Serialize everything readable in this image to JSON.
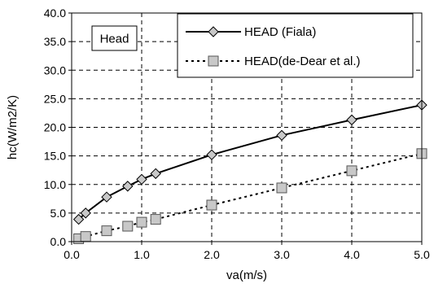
{
  "chart_data": {
    "type": "line",
    "xlabel": "va(m/s)",
    "ylabel": "hc(W/m2/K)",
    "xlim": [
      0,
      5
    ],
    "ylim": [
      0,
      40
    ],
    "x_ticks": [
      "0.0",
      "1.0",
      "2.0",
      "3.0",
      "4.0",
      "5.0"
    ],
    "x_tick_values": [
      0,
      1,
      2,
      3,
      4,
      5
    ],
    "y_ticks": [
      "0.0",
      "5.0",
      "10.0",
      "15.0",
      "20.0",
      "25.0",
      "30.0",
      "35.0",
      "40.0"
    ],
    "y_tick_values": [
      0,
      5,
      10,
      15,
      20,
      25,
      30,
      35,
      40
    ],
    "grid": true,
    "annotation": "Head",
    "legend_position": "top-right",
    "series": [
      {
        "name": "HEAD (Fiala)",
        "line_style": "solid",
        "marker": "diamond",
        "x": [
          0.1,
          0.2,
          0.5,
          0.8,
          1.0,
          1.2,
          2.0,
          3.0,
          4.0,
          5.0
        ],
        "y": [
          3.9,
          5.0,
          7.8,
          9.7,
          10.9,
          11.9,
          15.2,
          18.6,
          21.3,
          23.9
        ]
      },
      {
        "name": "HEAD(de-Dear et al.)",
        "line_style": "dotted",
        "marker": "square",
        "x": [
          0.1,
          0.2,
          0.5,
          0.8,
          1.0,
          1.2,
          2.0,
          3.0,
          4.0,
          5.0
        ],
        "y": [
          0.5,
          0.9,
          1.9,
          2.7,
          3.4,
          3.9,
          6.4,
          9.4,
          12.4,
          15.4
        ]
      }
    ]
  },
  "colors": {
    "marker_fill": "#c8c8c8",
    "line": "#000000",
    "grid": "#000000"
  }
}
